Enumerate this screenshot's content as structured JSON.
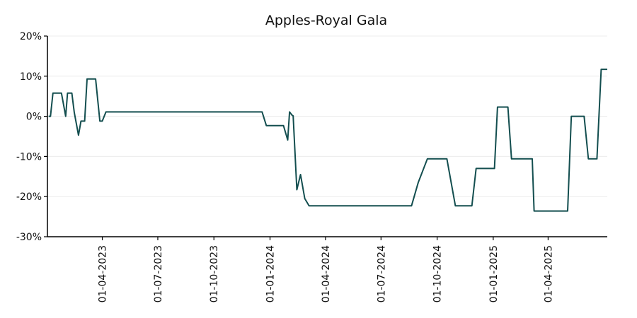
{
  "chart_data": {
    "type": "line",
    "title": "Apples-Royal Gala",
    "xlabel": "",
    "ylabel": "",
    "ylim": [
      -30,
      20
    ],
    "y_tick_values": [
      -30,
      -20,
      -10,
      0,
      10,
      20
    ],
    "y_tick_labels": [
      "-30%",
      "-20%",
      "-10%",
      "0%",
      "10%",
      "20%"
    ],
    "x_ticks": [
      {
        "date": "2023-04-01",
        "label": "01-04-2023"
      },
      {
        "date": "2023-07-01",
        "label": "01-07-2023"
      },
      {
        "date": "2023-10-01",
        "label": "01-10-2023"
      },
      {
        "date": "2024-01-01",
        "label": "01-01-2024"
      },
      {
        "date": "2024-04-01",
        "label": "01-04-2024"
      },
      {
        "date": "2024-07-01",
        "label": "01-07-2024"
      },
      {
        "date": "2024-10-01",
        "label": "01-10-2024"
      },
      {
        "date": "2025-01-01",
        "label": "01-01-2025"
      },
      {
        "date": "2025-04-01",
        "label": "01-04-2025"
      }
    ],
    "xlim": [
      "2023-01-01",
      "2025-07-07"
    ],
    "grid": "horizontal",
    "line_color": "#134e4f",
    "series": [
      {
        "x": [
          "2023-01-03",
          "2023-01-06",
          "2023-01-10",
          "2023-01-17",
          "2023-01-24",
          "2023-01-31",
          "2023-02-03",
          "2023-02-10",
          "2023-02-14",
          "2023-02-21",
          "2023-02-25",
          "2023-03-03",
          "2023-03-07",
          "2023-03-14",
          "2023-03-21",
          "2023-03-28",
          "2023-04-01",
          "2023-04-07",
          "2023-04-14",
          "2023-04-21",
          "2023-04-28",
          "2023-05-05",
          "2023-05-12",
          "2023-05-19",
          "2023-05-26",
          "2023-06-02",
          "2023-06-09",
          "2023-06-30",
          "2023-07-31",
          "2023-08-31",
          "2023-09-30",
          "2023-10-31",
          "2023-11-30",
          "2023-12-08",
          "2023-12-19",
          "2023-12-26",
          "2023-12-31",
          "2024-01-05",
          "2024-01-09",
          "2024-01-16",
          "2024-01-23",
          "2024-01-30",
          "2024-02-02",
          "2024-02-06",
          "2024-02-08",
          "2024-02-14",
          "2024-02-20",
          "2024-02-27",
          "2024-03-05",
          "2024-03-31",
          "2024-04-30",
          "2024-05-31",
          "2024-06-30",
          "2024-07-06",
          "2024-07-15",
          "2024-07-25",
          "2024-08-06",
          "2024-08-14",
          "2024-08-20",
          "2024-08-31",
          "2024-09-15",
          "2024-09-30",
          "2024-10-03",
          "2024-10-06",
          "2024-10-10",
          "2024-10-17",
          "2024-10-31",
          "2024-11-06",
          "2024-11-09",
          "2024-11-16",
          "2024-11-20",
          "2024-11-27",
          "2024-12-04",
          "2024-12-11",
          "2024-12-18",
          "2024-12-29",
          "2025-01-03",
          "2025-01-08",
          "2025-01-14",
          "2025-01-21",
          "2025-01-25",
          "2025-01-31",
          "2025-02-07",
          "2025-02-14",
          "2025-02-21",
          "2025-02-28",
          "2025-03-06",
          "2025-03-09",
          "2025-03-17",
          "2025-03-24",
          "2025-03-31",
          "2025-04-06",
          "2025-04-12",
          "2025-04-19",
          "2025-04-26",
          "2025-05-03",
          "2025-05-09",
          "2025-05-16",
          "2025-05-23",
          "2025-05-30",
          "2025-06-06",
          "2025-06-13",
          "2025-06-20",
          "2025-06-27",
          "2025-07-03",
          "2025-07-07"
        ],
        "y": [
          0,
          0,
          5.8,
          5.8,
          5.8,
          0,
          5.8,
          5.8,
          1,
          -4.7,
          -1.2,
          -1.2,
          9.3,
          9.3,
          9.3,
          -1.2,
          -1.2,
          1.1,
          1.1,
          1.1,
          1.1,
          1.1,
          1.1,
          1.1,
          1.1,
          1.1,
          1.1,
          1.1,
          1.1,
          1.1,
          1.1,
          1.1,
          1.1,
          1.1,
          1.1,
          -2.3,
          -2.3,
          -2.3,
          -2.3,
          -2.3,
          -2.3,
          -5.9,
          1.1,
          0.3,
          0.1,
          -18.3,
          -14.5,
          -20.5,
          -22.3,
          -22.3,
          -22.3,
          -22.3,
          -22.3,
          -22.3,
          -22.3,
          -22.3,
          -22.3,
          -22.3,
          -22.3,
          -16.5,
          -10.6,
          -10.6,
          -10.6,
          -10.6,
          -10.6,
          -10.6,
          -22.3,
          -22.3,
          -22.3,
          -22.3,
          -22.3,
          -22.3,
          -13,
          -13,
          -13,
          -13,
          -13,
          2.3,
          2.3,
          2.3,
          2.3,
          -10.6,
          -10.6,
          -10.6,
          -10.6,
          -10.6,
          -10.6,
          -23.6,
          -23.6,
          -23.6,
          -23.6,
          -23.6,
          -23.6,
          -23.6,
          -23.6,
          -23.6,
          0,
          0,
          0,
          0,
          -10.6,
          -10.6,
          -10.6,
          11.7,
          11.7,
          11.7
        ]
      }
    ]
  }
}
